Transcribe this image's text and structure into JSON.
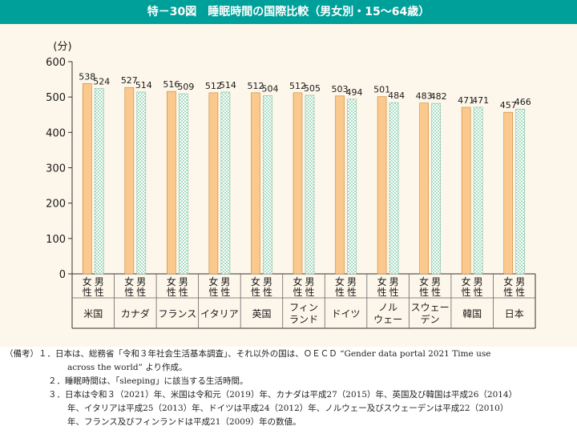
{
  "title": "特－30図　睡眠時間の国際比較（男女別・15～64歳）",
  "chart_data": {
    "type": "bar",
    "y_unit": "(分)",
    "ylim": [
      0,
      600
    ],
    "yticks": [
      "0",
      "100",
      "200",
      "300",
      "400",
      "500",
      "600"
    ],
    "categories": [
      {
        "lines": [
          "米国"
        ]
      },
      {
        "lines": [
          "カナダ"
        ]
      },
      {
        "lines": [
          "フランス"
        ]
      },
      {
        "lines": [
          "イタリア"
        ]
      },
      {
        "lines": [
          "英国"
        ]
      },
      {
        "lines": [
          "フィン",
          "ランド"
        ]
      },
      {
        "lines": [
          "ドイツ"
        ]
      },
      {
        "lines": [
          "ノル",
          "ウェー"
        ]
      },
      {
        "lines": [
          "スウェー",
          "デン"
        ]
      },
      {
        "lines": [
          "韓国"
        ]
      },
      {
        "lines": [
          "日本"
        ]
      }
    ],
    "sex_labels": [
      [
        "女",
        "性"
      ],
      [
        "男",
        "性"
      ]
    ],
    "series": [
      {
        "values": [
          538,
          527,
          516,
          512,
          512,
          512,
          503,
          501,
          483,
          471,
          457
        ]
      },
      {
        "values": [
          524,
          514,
          509,
          514,
          504,
          505,
          494,
          484,
          482,
          471,
          466
        ]
      }
    ],
    "colors": {
      "female": "#fbc98e",
      "male_check": "#a8dcc4",
      "male_bg": "#ffffff",
      "border": "#c8822e"
    },
    "grid": false
  },
  "notes": {
    "l1": "（備考）１．日本は、総務省「令和３年社会生活基本調査」、それ以外の国は、ＯＥＣＤ “Gender data portal 2021 Time use",
    "l1b": "across the world” より作成。",
    "l2": "２．睡眠時間は、「sleeping」に該当する生活時間。",
    "l3": "３．日本は令和３（2021）年、米国は令和元（2019）年、カナダは平成27（2015）年、英国及び韓国は平成26（2014）",
    "l3b": "年、イタリアは平成25（2013）年、ドイツは平成24（2012）年、ノルウェー及びスウェーデンは平成22（2010）",
    "l3c": "年、フランス及びフィンランドは平成21（2009）年の数値。"
  }
}
